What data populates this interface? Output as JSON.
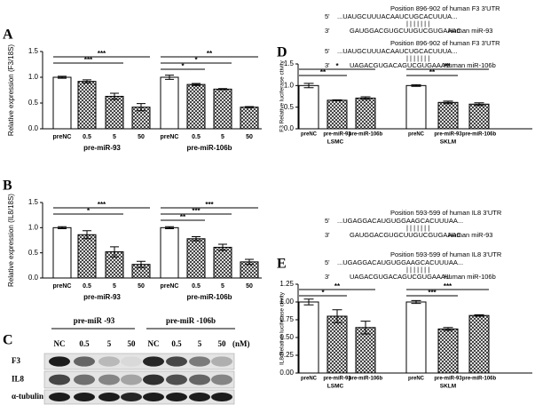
{
  "chart_data": [
    {
      "type": "bar",
      "panel": "A",
      "y_label": "Relative expression (F3/18S)",
      "categories": [
        "preNC",
        "0.5",
        "5",
        "50",
        "preNC",
        "0.5",
        "5",
        "50"
      ],
      "groups": [
        "pre-miR-93",
        "pre-miR-106b"
      ],
      "values": [
        1.0,
        0.92,
        0.63,
        0.42,
        1.0,
        0.86,
        0.77,
        0.42
      ],
      "errors": [
        0.02,
        0.03,
        0.06,
        0.07,
        0.04,
        0.02,
        0.01,
        0.01
      ],
      "colors": [
        "#ffffff",
        "#444444",
        "#444444",
        "#444444",
        "#ffffff",
        "#444444",
        "#444444",
        "#444444"
      ],
      "ylim": [
        0,
        1.5
      ],
      "yticks": [
        {
          "value": 0,
          "label": "0.0"
        },
        0.5,
        {
          "value": 1,
          "label": "1.0"
        },
        1.5
      ],
      "annotations": [
        "***",
        "***",
        "**",
        "*",
        "*"
      ]
    },
    {
      "type": "bar",
      "panel": "B",
      "y_label": "Relative expression (IL8/18S)",
      "categories": [
        "preNC",
        "0.5",
        "5",
        "50",
        "preNC",
        "0.5",
        "5",
        "50"
      ],
      "groups": [
        "pre-miR-93",
        "pre-miR-106b"
      ],
      "values": [
        1.0,
        0.86,
        0.52,
        0.27,
        1.0,
        0.78,
        0.61,
        0.32
      ],
      "errors": [
        0.02,
        0.08,
        0.1,
        0.06,
        0.02,
        0.04,
        0.06,
        0.05
      ],
      "colors": [
        "#ffffff",
        "#444444",
        "#444444",
        "#444444",
        "#ffffff",
        "#444444",
        "#444444",
        "#444444"
      ],
      "ylim": [
        0,
        1.5
      ],
      "yticks": [
        {
          "value": 0,
          "label": "0.0"
        },
        0.5,
        {
          "value": 1,
          "label": "1.0"
        },
        1.5
      ],
      "annotations": [
        "***",
        "*",
        "***",
        "***",
        "**"
      ]
    },
    {
      "type": "bar",
      "panel": "D",
      "y_label": "F3 Relative luciferase ctivity",
      "categories": [
        "preNC",
        "pre-miR-93",
        "pre-miR-106b",
        "preNC",
        "pre-miR-93",
        "pre-miR-106b"
      ],
      "groups": [
        "LSMC",
        "SKLM"
      ],
      "values": [
        1.0,
        0.66,
        0.71,
        1.0,
        0.61,
        0.57
      ],
      "errors": [
        0.05,
        0.01,
        0.03,
        0.02,
        0.03,
        0.03
      ],
      "colors": [
        "#ffffff",
        "#444444",
        "#444444",
        "#ffffff",
        "#444444",
        "#444444"
      ],
      "ylim": [
        0,
        1.5
      ],
      "yticks": [
        {
          "value": 0,
          "label": "0.0"
        },
        0.5,
        {
          "value": 1,
          "label": "1.0"
        },
        1.5
      ],
      "annotations": [
        "*",
        "**",
        "**",
        "**"
      ]
    },
    {
      "type": "bar",
      "panel": "E",
      "y_label": "IL8 Relative luciferase ctivity",
      "categories": [
        "preNC",
        "pre-miR-93",
        "pre-miR-106b",
        "preNC",
        "pre-miR-93",
        "pre-miR-106b"
      ],
      "groups": [
        "LSMC",
        "SKLM"
      ],
      "values": [
        1.0,
        0.8,
        0.64,
        1.0,
        0.62,
        0.81
      ],
      "errors": [
        0.04,
        0.09,
        0.09,
        0.02,
        0.02,
        0.01
      ],
      "colors": [
        "#ffffff",
        "#444444",
        "#444444",
        "#ffffff",
        "#444444",
        "#444444"
      ],
      "ylim": [
        0,
        1.25
      ],
      "yticks": [
        {
          "value": 0,
          "label": "0.00"
        },
        {
          "value": 0.25,
          "label": "0.25"
        },
        {
          "value": 0.5,
          "label": "0.50"
        },
        {
          "value": 0.75,
          "label": "0.75"
        },
        {
          "value": 1,
          "label": "1.00"
        },
        {
          "value": 1.25,
          "label": "1.25"
        }
      ],
      "annotations": [
        "**",
        "*",
        "***",
        "***"
      ]
    }
  ],
  "blot": {
    "panel": "C",
    "groups": [
      "pre-miR -93",
      "pre-miR -106b"
    ],
    "lanes": [
      "NC",
      "0.5",
      "5",
      "50",
      "NC",
      "0.5",
      "5",
      "50"
    ],
    "unit": "(nM)",
    "rows": [
      "F3",
      "IL8",
      "α-tubulin"
    ]
  },
  "alignments": [
    {
      "position": "Position 896-902 of human F3 3'UTR",
      "end_5": "5'",
      "target": "...UAUGCUUUACAAUCUGCACUUUA...",
      "pairing": "| | | | | | |",
      "end_3": "3'",
      "mirna": "GAUGGACGUGCUUGUCGUGAAAC",
      "mirna_name": "Human miR-93"
    },
    {
      "position": "Position 896-902 of human F3 3'UTR",
      "end_5": "5'",
      "target": "...UAUGCUUUACAAUCUGCACUUUA...",
      "pairing": "| | | | | | |",
      "end_3": "3'",
      "mirna": "UAGACGUGACAGUCGUGAAAU",
      "mirna_name": "Human miR-106b"
    },
    {
      "position": "Position 593-599 of human IL8 3'UTR",
      "end_5": "5'",
      "target": "...UGAGGACAUGUGGAAGCACUUUAA...",
      "pairing": "| | | | | | |",
      "end_3": "3'",
      "mirna": "GAUGGACGUGCUUGUCGUGAAAC",
      "mirna_name": "Human miR-93"
    },
    {
      "position": "Position 593-599 of human IL8 3'UTR",
      "end_5": "5'",
      "target": "...UGAGGACAUGUGGAAGCACUUUAA...",
      "pairing": "| | | | | | |",
      "end_3": "3'",
      "mirna": "UAGACGUGACAGUCGUGAAAU",
      "mirna_name": "Human miR-106b"
    }
  ]
}
